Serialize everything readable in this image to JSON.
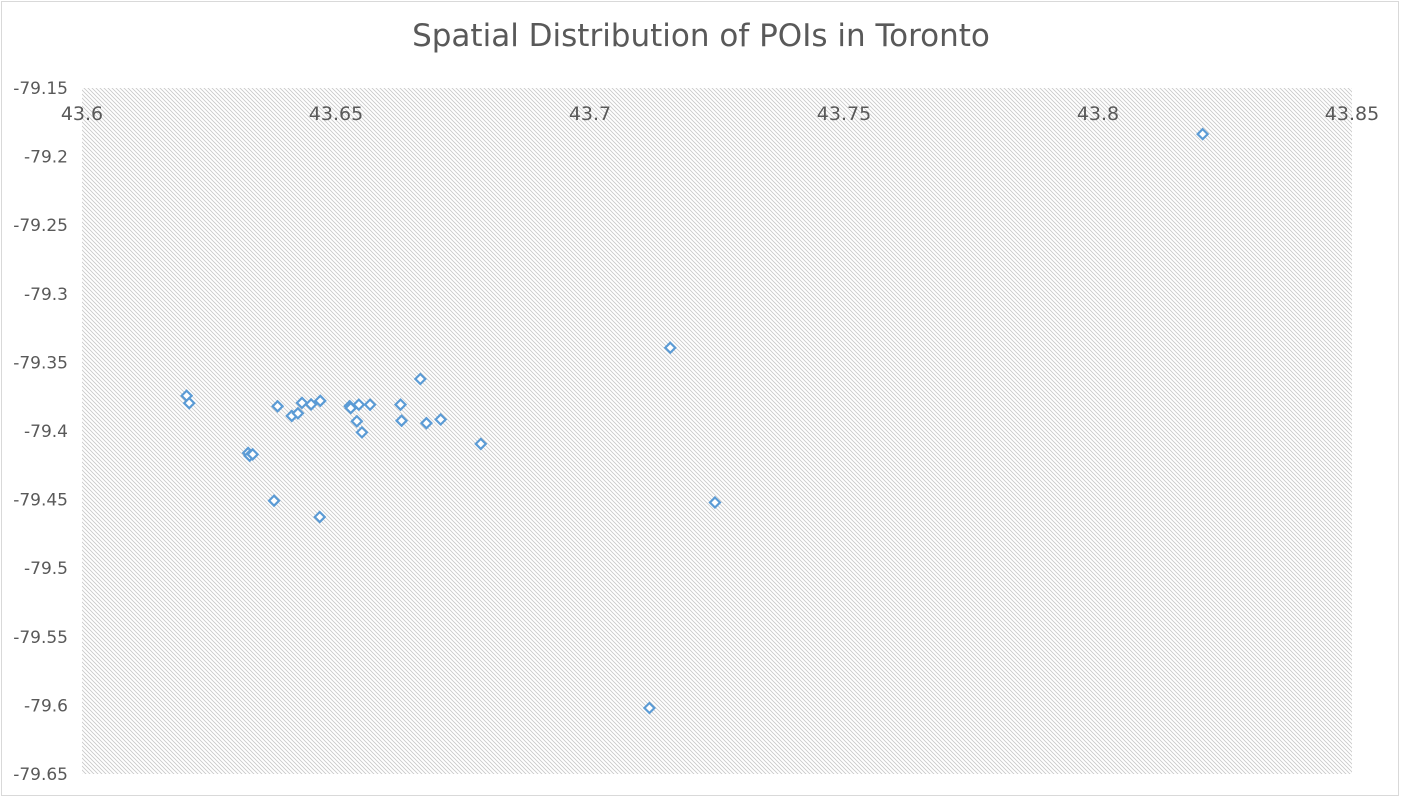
{
  "chart_data": {
    "type": "scatter",
    "title": "Spatial Distribution of POIs in Toronto",
    "xlabel": "",
    "ylabel": "",
    "xlim": [
      43.6,
      43.85
    ],
    "ylim": [
      -79.65,
      -79.15
    ],
    "x_axis_position": "top",
    "x_ticks": [
      "43.6",
      "43.65",
      "43.7",
      "43.75",
      "43.8",
      "43.85"
    ],
    "y_ticks": [
      "-79.15",
      "-79.2",
      "-79.25",
      "-79.3",
      "-79.35",
      "-79.4",
      "-79.45",
      "-79.5",
      "-79.55",
      "-79.6",
      "-79.65"
    ],
    "grid": false,
    "plot_area_fill": "diagonal-hatch",
    "legend": "none",
    "marker": "diamond-outline",
    "marker_color": "#5b9bd5",
    "series": [
      {
        "points": [
          {
            "x": 43.8206,
            "y": -79.1836
          },
          {
            "x": 43.7158,
            "y": -79.3393
          },
          {
            "x": 43.6666,
            "y": -79.3621
          },
          {
            "x": 43.6206,
            "y": -79.3743
          },
          {
            "x": 43.6211,
            "y": -79.3797
          },
          {
            "x": 43.6385,
            "y": -79.382
          },
          {
            "x": 43.6433,
            "y": -79.3795
          },
          {
            "x": 43.6451,
            "y": -79.3806
          },
          {
            "x": 43.6469,
            "y": -79.378
          },
          {
            "x": 43.6413,
            "y": -79.389
          },
          {
            "x": 43.6425,
            "y": -79.3871
          },
          {
            "x": 43.6527,
            "y": -79.3819
          },
          {
            "x": 43.6529,
            "y": -79.3833
          },
          {
            "x": 43.6545,
            "y": -79.3808
          },
          {
            "x": 43.6567,
            "y": -79.3808
          },
          {
            "x": 43.6627,
            "y": -79.3808
          },
          {
            "x": 43.6541,
            "y": -79.3929
          },
          {
            "x": 43.6551,
            "y": -79.401
          },
          {
            "x": 43.6629,
            "y": -79.3925
          },
          {
            "x": 43.6678,
            "y": -79.3943
          },
          {
            "x": 43.6706,
            "y": -79.3916
          },
          {
            "x": 43.6785,
            "y": -79.4094
          },
          {
            "x": 43.6327,
            "y": -79.416
          },
          {
            "x": 43.633,
            "y": -79.4181
          },
          {
            "x": 43.6336,
            "y": -79.417
          },
          {
            "x": 43.6378,
            "y": -79.4508
          },
          {
            "x": 43.6468,
            "y": -79.4627
          },
          {
            "x": 43.7246,
            "y": -79.4521
          },
          {
            "x": 43.7117,
            "y": -79.6019
          }
        ]
      }
    ]
  }
}
